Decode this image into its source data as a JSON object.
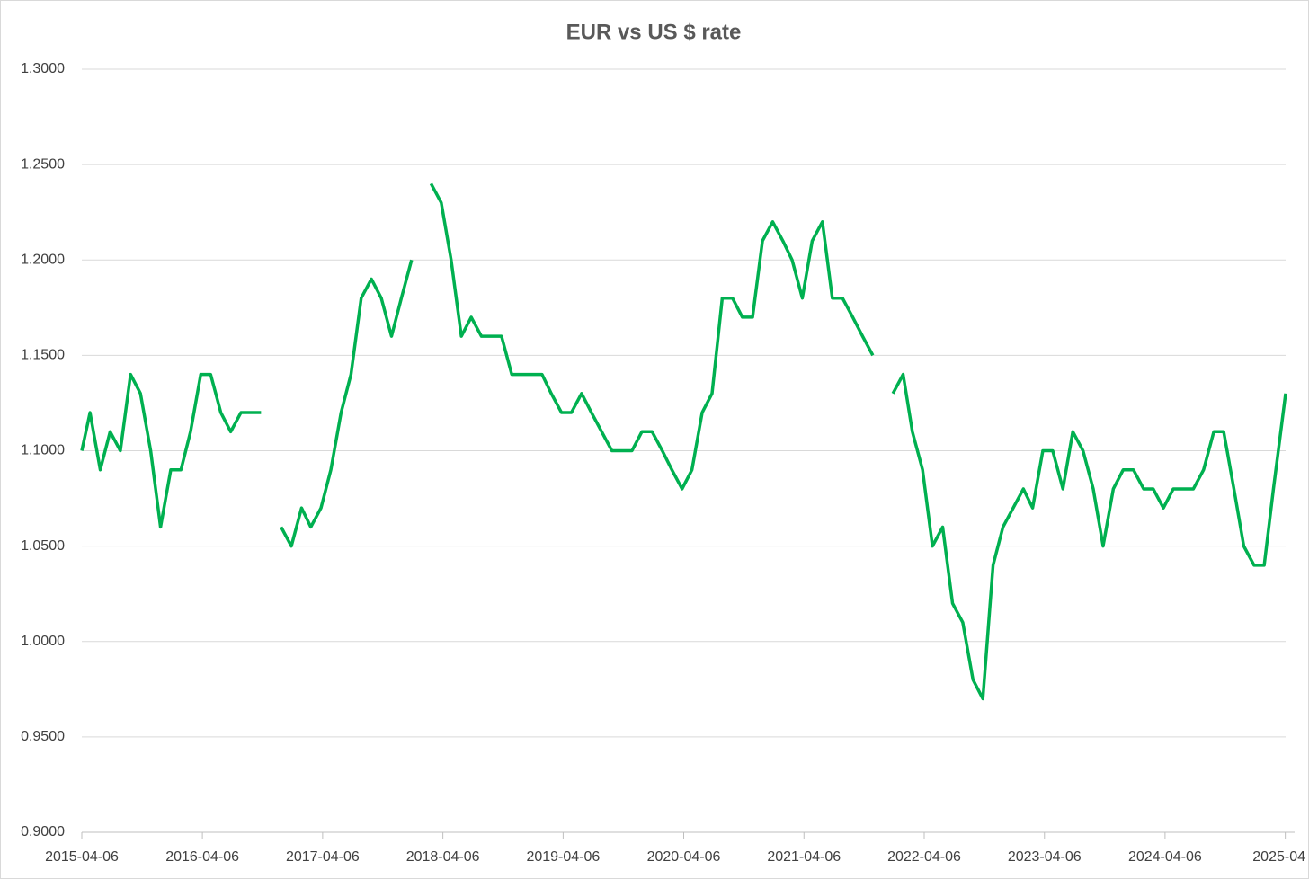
{
  "chart_data": {
    "type": "line",
    "title": "EUR vs US $ rate",
    "x": [
      "2015-04-06",
      "2015-05-01",
      "2015-06-01",
      "2015-07-01",
      "2015-08-01",
      "2015-09-01",
      "2015-10-01",
      "2015-11-01",
      "2015-12-01",
      "2016-01-01",
      "2016-02-01",
      "2016-03-01",
      "2016-04-01",
      "2016-05-01",
      "2016-06-01",
      "2016-07-01",
      "2016-08-01",
      "2016-09-01",
      "2016-10-01",
      "2016-11-01",
      "2016-12-01",
      "2017-01-01",
      "2017-02-01",
      "2017-03-01",
      "2017-04-01",
      "2017-05-01",
      "2017-06-01",
      "2017-07-01",
      "2017-08-01",
      "2017-09-01",
      "2017-10-01",
      "2017-11-01",
      "2017-12-01",
      "2018-01-01",
      "2018-02-01",
      "2018-03-01",
      "2018-04-01",
      "2018-05-01",
      "2018-06-01",
      "2018-07-01",
      "2018-08-01",
      "2018-09-01",
      "2018-10-01",
      "2018-11-01",
      "2018-12-01",
      "2019-01-01",
      "2019-02-01",
      "2019-03-01",
      "2019-04-01",
      "2019-05-01",
      "2019-06-01",
      "2019-07-01",
      "2019-08-01",
      "2019-09-01",
      "2019-10-01",
      "2019-11-01",
      "2019-12-01",
      "2020-01-01",
      "2020-02-01",
      "2020-03-01",
      "2020-04-01",
      "2020-05-01",
      "2020-06-01",
      "2020-07-01",
      "2020-08-01",
      "2020-09-01",
      "2020-10-01",
      "2020-11-01",
      "2020-12-01",
      "2021-01-01",
      "2021-02-01",
      "2021-03-01",
      "2021-04-01",
      "2021-05-01",
      "2021-06-01",
      "2021-07-01",
      "2021-08-01",
      "2021-09-01",
      "2021-10-01",
      "2021-11-01",
      "2021-12-01",
      "2022-01-01",
      "2022-02-01",
      "2022-03-01",
      "2022-04-01",
      "2022-05-01",
      "2022-06-01",
      "2022-07-01",
      "2022-08-01",
      "2022-09-01",
      "2022-10-01",
      "2022-11-01",
      "2022-12-01",
      "2023-01-01",
      "2023-02-01",
      "2023-03-01",
      "2023-04-01",
      "2023-05-01",
      "2023-06-01",
      "2023-07-01",
      "2023-08-01",
      "2023-09-01",
      "2023-10-01",
      "2023-11-01",
      "2023-12-01",
      "2024-01-01",
      "2024-02-01",
      "2024-03-01",
      "2024-04-01",
      "2024-05-01",
      "2024-06-01",
      "2024-07-01",
      "2024-08-01",
      "2024-09-01",
      "2024-10-01",
      "2024-11-01",
      "2024-12-01",
      "2025-01-01",
      "2025-02-01",
      "2025-03-01",
      "2025-04-07"
    ],
    "series": [
      {
        "name": "EUR vs US $ rate",
        "color": "#00b050",
        "values": [
          1.1,
          1.12,
          1.09,
          1.11,
          1.1,
          1.14,
          1.13,
          1.1,
          1.06,
          1.09,
          1.09,
          1.11,
          1.14,
          1.14,
          1.12,
          1.11,
          1.12,
          1.12,
          1.12,
          null,
          1.06,
          1.05,
          1.07,
          1.06,
          1.07,
          1.09,
          1.12,
          1.14,
          1.18,
          1.19,
          1.18,
          1.16,
          1.18,
          1.2,
          null,
          1.24,
          1.23,
          1.2,
          1.16,
          1.17,
          1.16,
          1.16,
          1.16,
          1.14,
          1.14,
          1.14,
          1.14,
          1.13,
          1.12,
          1.12,
          1.13,
          1.12,
          1.11,
          1.1,
          1.1,
          1.1,
          1.11,
          1.11,
          1.1,
          1.09,
          1.08,
          1.09,
          1.12,
          1.13,
          1.18,
          1.18,
          1.17,
          1.17,
          1.21,
          1.22,
          1.21,
          1.2,
          1.18,
          1.21,
          1.22,
          1.18,
          1.18,
          1.17,
          1.16,
          1.15,
          null,
          1.13,
          1.14,
          1.11,
          1.09,
          1.05,
          1.06,
          1.02,
          1.01,
          0.98,
          0.97,
          1.04,
          1.06,
          1.07,
          1.08,
          1.07,
          1.1,
          1.1,
          1.08,
          1.11,
          1.1,
          1.08,
          1.05,
          1.08,
          1.09,
          1.09,
          1.08,
          1.08,
          1.07,
          1.08,
          1.08,
          1.08,
          1.09,
          1.11,
          1.11,
          1.08,
          1.05,
          1.04,
          1.04,
          1.08,
          1.13
        ]
      }
    ],
    "xlim": [
      "2015-04-06",
      "2025-04-07"
    ],
    "xticks": [
      "2015-04-06",
      "2016-04-06",
      "2017-04-06",
      "2018-04-06",
      "2019-04-06",
      "2020-04-06",
      "2021-04-06",
      "2022-04-06",
      "2023-04-06",
      "2024-04-06",
      {
        "value": "2025-04-06",
        "label": "2025-04"
      }
    ],
    "ylim": [
      0.9,
      1.3
    ],
    "yticks": [
      {
        "value": 0.9,
        "label": "0.9000"
      },
      {
        "value": 0.95,
        "label": "0.9500"
      },
      {
        "value": 1.0,
        "label": "1.0000"
      },
      {
        "value": 1.05,
        "label": "1.0500"
      },
      {
        "value": 1.1,
        "label": "1.1000"
      },
      {
        "value": 1.15,
        "label": "1.1500"
      },
      {
        "value": 1.2,
        "label": "1.2000"
      },
      {
        "value": 1.25,
        "label": "1.2500"
      },
      {
        "value": 1.3,
        "label": "1.3000"
      }
    ],
    "grid": true
  }
}
